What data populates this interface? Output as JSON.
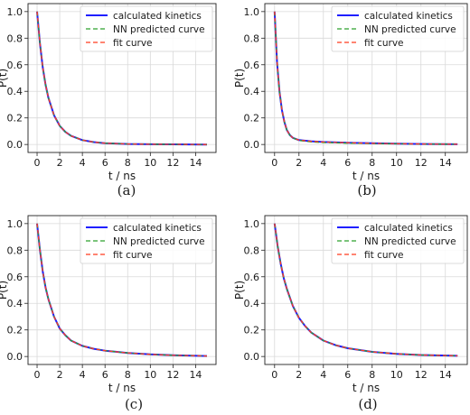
{
  "chart_data": [
    {
      "type": "line",
      "caption": "(a)",
      "xlabel": "t / ns",
      "ylabel": "P(t)",
      "xlim": [
        -0.8,
        15.8
      ],
      "ylim": [
        -0.06,
        1.06
      ],
      "xticks": [
        "0",
        "2",
        "4",
        "6",
        "8",
        "10",
        "12",
        "14"
      ],
      "yticks": [
        "0.0",
        "0.2",
        "0.4",
        "0.6",
        "0.8",
        "1.0"
      ],
      "grid": true,
      "legend_position": "top-right",
      "series": [
        {
          "name": "calculated kinetics",
          "style": "solid",
          "color": "#1f1fff",
          "x": [
            0,
            0.25,
            0.5,
            0.75,
            1,
            1.5,
            2,
            2.5,
            3,
            4,
            5,
            6,
            8,
            10,
            12,
            15
          ],
          "y": [
            1.0,
            0.76,
            0.58,
            0.45,
            0.35,
            0.22,
            0.14,
            0.095,
            0.065,
            0.033,
            0.018,
            0.01,
            0.004,
            0.002,
            0.001,
            0.0
          ]
        },
        {
          "name": "NN predicted curve",
          "style": "dashed",
          "color": "#2ca02c",
          "x": [
            0,
            0.25,
            0.5,
            0.75,
            1,
            1.5,
            2,
            2.5,
            3,
            4,
            5,
            6,
            8,
            10,
            12,
            15
          ],
          "y": [
            1.0,
            0.76,
            0.58,
            0.45,
            0.35,
            0.22,
            0.14,
            0.095,
            0.065,
            0.033,
            0.018,
            0.01,
            0.004,
            0.002,
            0.001,
            0.0
          ]
        },
        {
          "name": "fit curve",
          "style": "dashed",
          "color": "#ff3b1f",
          "x": [
            0,
            0.25,
            0.5,
            0.75,
            1,
            1.5,
            2,
            2.5,
            3,
            4,
            5,
            6,
            8,
            10,
            12,
            15
          ],
          "y": [
            1.0,
            0.76,
            0.58,
            0.45,
            0.35,
            0.22,
            0.14,
            0.095,
            0.065,
            0.033,
            0.018,
            0.01,
            0.004,
            0.002,
            0.001,
            0.0
          ]
        }
      ]
    },
    {
      "type": "line",
      "caption": "(b)",
      "xlabel": "t / ns",
      "ylabel": "P(t)",
      "xlim": [
        -0.8,
        15.8
      ],
      "ylim": [
        -0.06,
        1.06
      ],
      "xticks": [
        "0",
        "2",
        "4",
        "6",
        "8",
        "10",
        "12",
        "14"
      ],
      "yticks": [
        "0.0",
        "0.2",
        "0.4",
        "0.6",
        "0.8",
        "1.0"
      ],
      "grid": true,
      "legend_position": "top-right",
      "series": [
        {
          "name": "calculated kinetics",
          "style": "solid",
          "color": "#1f1fff",
          "x": [
            0,
            0.2,
            0.4,
            0.6,
            0.8,
            1,
            1.25,
            1.5,
            2,
            3,
            4,
            6,
            8,
            10,
            12,
            15
          ],
          "y": [
            1.0,
            0.62,
            0.4,
            0.26,
            0.17,
            0.11,
            0.07,
            0.05,
            0.033,
            0.024,
            0.019,
            0.013,
            0.009,
            0.006,
            0.004,
            0.002
          ]
        },
        {
          "name": "NN predicted curve",
          "style": "dashed",
          "color": "#2ca02c",
          "x": [
            0,
            0.2,
            0.4,
            0.6,
            0.8,
            1,
            1.25,
            1.5,
            2,
            3,
            4,
            6,
            8,
            10,
            12,
            15
          ],
          "y": [
            1.0,
            0.62,
            0.4,
            0.26,
            0.17,
            0.11,
            0.07,
            0.05,
            0.03,
            0.02,
            0.015,
            0.01,
            0.007,
            0.005,
            0.003,
            0.002
          ]
        },
        {
          "name": "fit curve",
          "style": "dashed",
          "color": "#ff3b1f",
          "x": [
            0,
            0.2,
            0.4,
            0.6,
            0.8,
            1,
            1.25,
            1.5,
            2,
            3,
            4,
            6,
            8,
            10,
            12,
            15
          ],
          "y": [
            1.0,
            0.62,
            0.4,
            0.26,
            0.17,
            0.11,
            0.07,
            0.05,
            0.033,
            0.024,
            0.019,
            0.013,
            0.009,
            0.006,
            0.004,
            0.002
          ]
        }
      ]
    },
    {
      "type": "line",
      "caption": "(c)",
      "xlabel": "t / ns",
      "ylabel": "P(t)",
      "xlim": [
        -0.8,
        15.8
      ],
      "ylim": [
        -0.06,
        1.06
      ],
      "xticks": [
        "0",
        "2",
        "4",
        "6",
        "8",
        "10",
        "12",
        "14"
      ],
      "yticks": [
        "0.0",
        "0.2",
        "0.4",
        "0.6",
        "0.8",
        "1.0"
      ],
      "grid": true,
      "legend_position": "top-right",
      "series": [
        {
          "name": "calculated kinetics",
          "style": "solid",
          "color": "#1f1fff",
          "x": [
            0,
            0.25,
            0.5,
            0.75,
            1,
            1.5,
            2,
            2.5,
            3,
            4,
            5,
            6,
            8,
            10,
            12,
            15
          ],
          "y": [
            1.0,
            0.8,
            0.64,
            0.52,
            0.43,
            0.3,
            0.21,
            0.16,
            0.12,
            0.08,
            0.058,
            0.044,
            0.027,
            0.016,
            0.009,
            0.004
          ]
        },
        {
          "name": "NN predicted curve",
          "style": "dashed",
          "color": "#2ca02c",
          "x": [
            0,
            0.25,
            0.5,
            0.75,
            1,
            1.5,
            2,
            2.5,
            3,
            4,
            5,
            6,
            8,
            10,
            12,
            15
          ],
          "y": [
            1.0,
            0.8,
            0.64,
            0.52,
            0.43,
            0.3,
            0.21,
            0.16,
            0.12,
            0.08,
            0.058,
            0.044,
            0.027,
            0.016,
            0.009,
            0.004
          ]
        },
        {
          "name": "fit curve",
          "style": "dashed",
          "color": "#ff3b1f",
          "x": [
            0,
            0.25,
            0.5,
            0.75,
            1,
            1.5,
            2,
            2.5,
            3,
            4,
            5,
            6,
            8,
            10,
            12,
            15
          ],
          "y": [
            1.0,
            0.8,
            0.64,
            0.52,
            0.43,
            0.3,
            0.21,
            0.16,
            0.12,
            0.08,
            0.058,
            0.044,
            0.027,
            0.016,
            0.009,
            0.004
          ]
        }
      ]
    },
    {
      "type": "line",
      "caption": "(d)",
      "xlabel": "t / ns",
      "ylabel": "P(t)",
      "xlim": [
        -0.8,
        15.8
      ],
      "ylim": [
        -0.06,
        1.06
      ],
      "xticks": [
        "0",
        "2",
        "4",
        "6",
        "8",
        "10",
        "12",
        "14"
      ],
      "yticks": [
        "0.0",
        "0.2",
        "0.4",
        "0.6",
        "0.8",
        "1.0"
      ],
      "grid": true,
      "legend_position": "top-right",
      "series": [
        {
          "name": "calculated kinetics",
          "style": "solid",
          "color": "#1f1fff",
          "x": [
            0,
            0.25,
            0.5,
            0.75,
            1,
            1.5,
            2,
            2.5,
            3,
            4,
            5,
            6,
            8,
            10,
            12,
            15
          ],
          "y": [
            1.0,
            0.83,
            0.7,
            0.59,
            0.51,
            0.38,
            0.29,
            0.23,
            0.18,
            0.12,
            0.085,
            0.062,
            0.035,
            0.02,
            0.011,
            0.005
          ]
        },
        {
          "name": "NN predicted curve",
          "style": "dashed",
          "color": "#2ca02c",
          "x": [
            0,
            0.25,
            0.5,
            0.75,
            1,
            1.5,
            2,
            2.5,
            3,
            4,
            5,
            6,
            8,
            10,
            12,
            15
          ],
          "y": [
            1.0,
            0.83,
            0.7,
            0.59,
            0.51,
            0.38,
            0.29,
            0.23,
            0.18,
            0.12,
            0.085,
            0.062,
            0.035,
            0.02,
            0.011,
            0.005
          ]
        },
        {
          "name": "fit curve",
          "style": "dashed",
          "color": "#ff3b1f",
          "x": [
            0,
            0.25,
            0.5,
            0.75,
            1,
            1.5,
            2,
            2.5,
            3,
            4,
            5,
            6,
            8,
            10,
            12,
            15
          ],
          "y": [
            1.0,
            0.83,
            0.7,
            0.59,
            0.51,
            0.38,
            0.29,
            0.23,
            0.18,
            0.12,
            0.085,
            0.062,
            0.035,
            0.02,
            0.011,
            0.005
          ]
        }
      ]
    }
  ]
}
